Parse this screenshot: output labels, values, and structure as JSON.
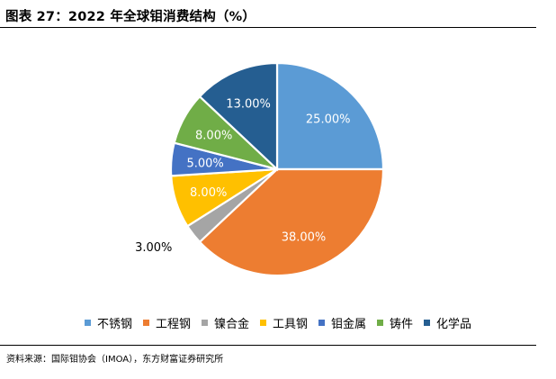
{
  "title": "图表 27：2022 年全球钼消费结构（%）",
  "source": "资料来源：国际钼协会（IMOA），东方财富证券研究所",
  "chart_data": {
    "type": "pie",
    "title": "图表 27：2022 年全球钼消费结构（%）",
    "start": "12 o'clock, clockwise",
    "legend_position": "bottom",
    "slices": [
      {
        "name": "不锈钢",
        "value": 25.0,
        "label": "25.00%",
        "color": "#5B9BD5",
        "label_color": "#ffffff"
      },
      {
        "name": "工程钢",
        "value": 38.0,
        "label": "38.00%",
        "color": "#ED7D31",
        "label_color": "#ffffff"
      },
      {
        "name": "镍合金",
        "value": 3.0,
        "label": "3.00%",
        "color": "#A5A5A5",
        "label_color": "#000000"
      },
      {
        "name": "工具钢",
        "value": 8.0,
        "label": "8.00%",
        "color": "#FFC000",
        "label_color": "#ffffff"
      },
      {
        "name": "钼金属",
        "value": 5.0,
        "label": "5.00%",
        "color": "#4472C4",
        "label_color": "#ffffff"
      },
      {
        "name": "铸件",
        "value": 8.0,
        "label": "8.00%",
        "color": "#70AD47",
        "label_color": "#ffffff"
      },
      {
        "name": "化学品",
        "value": 13.0,
        "label": "13.00%",
        "color": "#255E91",
        "label_color": "#ffffff"
      }
    ]
  }
}
